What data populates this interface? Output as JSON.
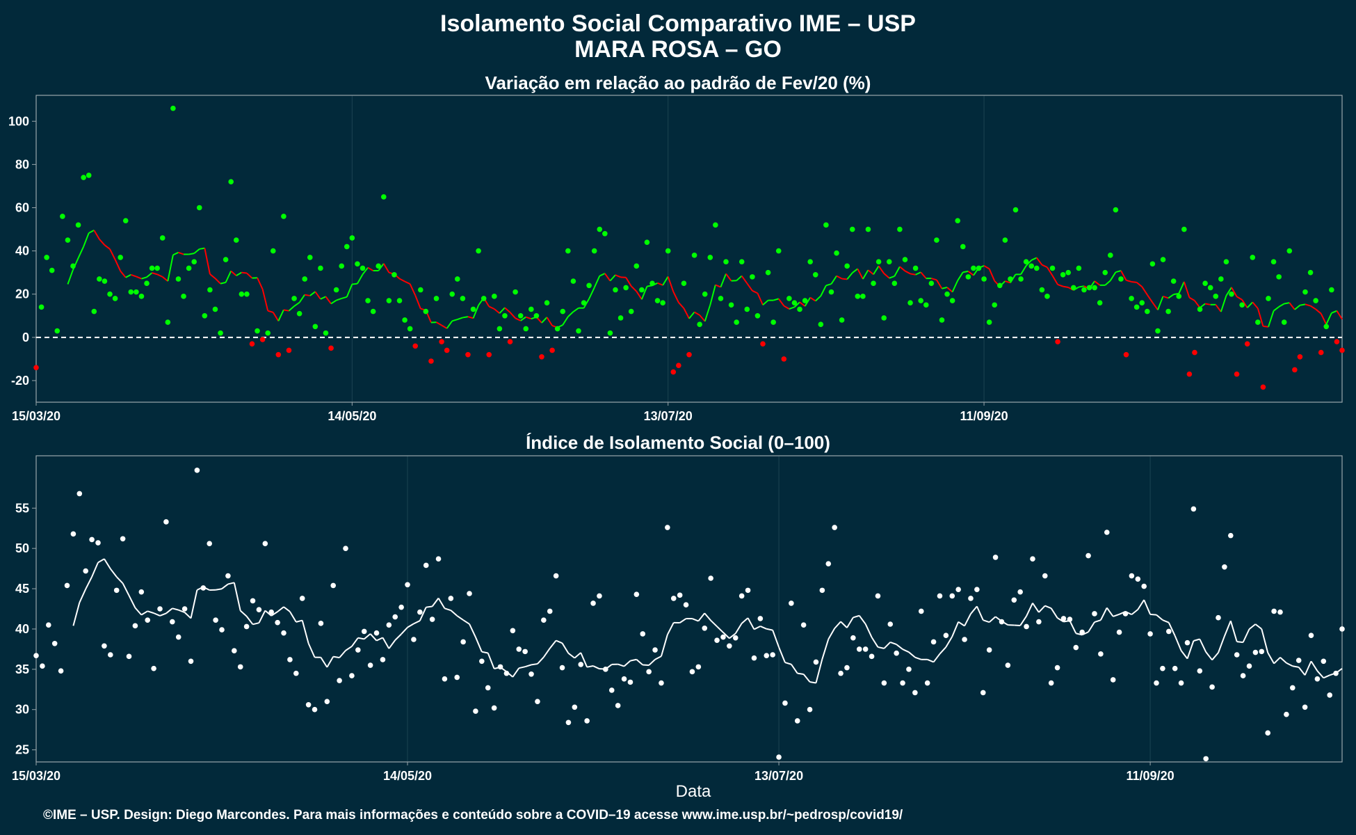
{
  "title_line1": "Isolamento Social Comparativo IME – USP",
  "title_line2": "MARA ROSA – GO",
  "xlabel": "Data",
  "footer": "©IME – USP. Design: Diego Marcondes. Para mais informações e conteúdo sobre a COVID–19 acesse www.ime.usp.br/~pedrosp/covid19/",
  "colors": {
    "background": "#02293a",
    "positive": "#00ff00",
    "negative": "#ff0000",
    "white": "#ffffff",
    "grid": "#1c4452",
    "frame": "#9aa6ab"
  },
  "chart_data": [
    {
      "type": "scatter",
      "title": "Variação em relação ao padrão de Fev/20 (%)",
      "x_start_date": "2020-03-15",
      "x_ticks": [
        "15/03/20",
        "14/05/20",
        "13/07/20",
        "11/09/20"
      ],
      "x_tick_day_index": [
        0,
        60,
        120,
        180
      ],
      "ylim": [
        -30,
        112
      ],
      "y_ticks": [
        -20,
        0,
        20,
        40,
        60,
        80,
        100
      ],
      "reference_line": 0,
      "series": [
        {
          "values": [
            -14,
            14,
            37,
            31,
            3,
            56,
            45,
            33,
            52,
            74,
            75,
            12,
            27,
            26,
            20,
            18,
            37,
            54,
            21,
            21,
            19,
            25,
            32,
            32,
            46,
            7,
            106,
            27,
            19,
            32,
            35,
            60,
            10,
            22,
            13,
            2,
            36,
            72,
            45,
            20,
            20,
            -3,
            3,
            -1,
            2,
            40,
            -8,
            56,
            -6,
            18,
            11,
            27,
            37,
            5,
            32,
            2,
            -5,
            22,
            33,
            42,
            46,
            34,
            32,
            17,
            12,
            33,
            65,
            17,
            29,
            17,
            8,
            4,
            -4,
            22,
            12,
            -11,
            18,
            -2,
            -6,
            20,
            27,
            18,
            -8,
            13,
            40,
            18,
            -8,
            19,
            4,
            10,
            -2,
            21,
            10,
            4,
            13,
            10,
            -9,
            16,
            -6,
            4,
            12,
            40,
            26,
            3,
            16,
            24,
            40,
            50,
            48,
            2,
            22,
            9,
            23,
            12,
            33,
            22,
            44,
            25,
            17,
            16,
            40,
            -16,
            -13,
            25,
            -8,
            38,
            6,
            20,
            37,
            52,
            18,
            35,
            15,
            7,
            35,
            13,
            28,
            10,
            -3,
            30,
            7,
            40,
            -10,
            18,
            16,
            13,
            17,
            35,
            29,
            6,
            52,
            21,
            39,
            8,
            33,
            50,
            19,
            19,
            50,
            25,
            35,
            9,
            35,
            25,
            50,
            36,
            16,
            32,
            17,
            15,
            25,
            45,
            8,
            20,
            17,
            54,
            42,
            28,
            32,
            32,
            27,
            7,
            15,
            24,
            45,
            27,
            59,
            27,
            35,
            33,
            32,
            22,
            19,
            32,
            -2,
            29,
            30,
            23,
            32,
            22,
            23,
            23,
            16,
            30,
            38,
            59,
            27,
            -8,
            18,
            14,
            16,
            12,
            34,
            3,
            36,
            12,
            26,
            19,
            50,
            -17,
            -7,
            13,
            25,
            23,
            19,
            27,
            35,
            20,
            -17,
            15,
            -3,
            37,
            7,
            -23,
            18,
            35,
            28,
            7,
            40,
            -15,
            -9,
            21,
            30,
            17,
            -7,
            5,
            22,
            -2,
            -6
          ],
          "moving_average_color_rule": "green if >= previous, red otherwise"
        }
      ]
    },
    {
      "type": "scatter",
      "title": "Índice de Isolamento Social (0–100)",
      "x_start_date": "2020-03-15",
      "x_ticks": [
        "15/03/20",
        "14/05/20",
        "13/07/20",
        "11/09/20"
      ],
      "x_tick_day_index": [
        0,
        60,
        120,
        180
      ],
      "ylim": [
        23.5,
        61.5
      ],
      "y_ticks": [
        25,
        30,
        35,
        40,
        45,
        50,
        55
      ],
      "series": [
        {
          "values": [
            36.7,
            35.4,
            40.5,
            38.2,
            34.8,
            45.4,
            51.8,
            56.8,
            47.2,
            51.1,
            50.7,
            37.9,
            36.8,
            44.8,
            51.2,
            36.6,
            40.4,
            44.6,
            41.1,
            35.1,
            42.5,
            53.3,
            40.9,
            39.0,
            42.5,
            36.0,
            59.7,
            45.1,
            50.6,
            41.1,
            39.9,
            46.6,
            37.3,
            35.3,
            40.3,
            43.5,
            42.4,
            50.6,
            42.1,
            40.8,
            39.5,
            36.2,
            34.5,
            43.8,
            30.6,
            30.0,
            40.7,
            31.0,
            45.4,
            33.6,
            50.0,
            34.2,
            37.4,
            39.7,
            35.5,
            39.5,
            36.2,
            40.5,
            41.5,
            42.7,
            45.5,
            38.7,
            42.1,
            47.9,
            41.2,
            48.7,
            33.8,
            43.8,
            34.0,
            38.4,
            44.4,
            29.8,
            36.0,
            32.7,
            30.2,
            35.3,
            34.5,
            39.8,
            37.5,
            37.2,
            34.4,
            31.0,
            41.1,
            42.2,
            46.6,
            35.2,
            28.4,
            30.3,
            35.6,
            28.6,
            43.2,
            44.1,
            35.0,
            32.4,
            30.5,
            33.8,
            33.4,
            44.3,
            39.4,
            34.7,
            37.4,
            33.3,
            52.6,
            43.8,
            44.2,
            43.0,
            34.7,
            35.3,
            40.1,
            46.3,
            38.6,
            39.0,
            37.9,
            38.9,
            44.1,
            44.8,
            36.4,
            41.3,
            36.7,
            36.8,
            24.1,
            30.8,
            43.2,
            28.6,
            40.5,
            30.0,
            35.9,
            44.8,
            48.1,
            52.6,
            34.5,
            35.2,
            38.9,
            37.5,
            37.5,
            36.6,
            44.1,
            33.3,
            40.6,
            37.0,
            33.3,
            35.0,
            32.1,
            42.2,
            33.3,
            38.4,
            44.1,
            39.2,
            44.1,
            44.9,
            38.7,
            43.8,
            44.9,
            32.1,
            37.4,
            48.9,
            40.9,
            35.5,
            43.6,
            44.6,
            40.3,
            48.7,
            40.9,
            46.6,
            33.3,
            35.2,
            41.3,
            41.2,
            37.7,
            39.6,
            49.1,
            41.9,
            36.9,
            52.0,
            33.7,
            39.6,
            41.9,
            46.6,
            46.2,
            45.3,
            39.4,
            33.3,
            35.1,
            39.7,
            35.1,
            33.3,
            38.3,
            54.9,
            34.8,
            23.9,
            32.8,
            41.4,
            47.7,
            51.6,
            36.8,
            34.2,
            35.4,
            37.1,
            37.2,
            27.1,
            42.2,
            42.1,
            29.4,
            32.7,
            36.1,
            30.3,
            39.2,
            33.8,
            36.0,
            31.8,
            34.5,
            40.0
          ]
        }
      ]
    }
  ]
}
